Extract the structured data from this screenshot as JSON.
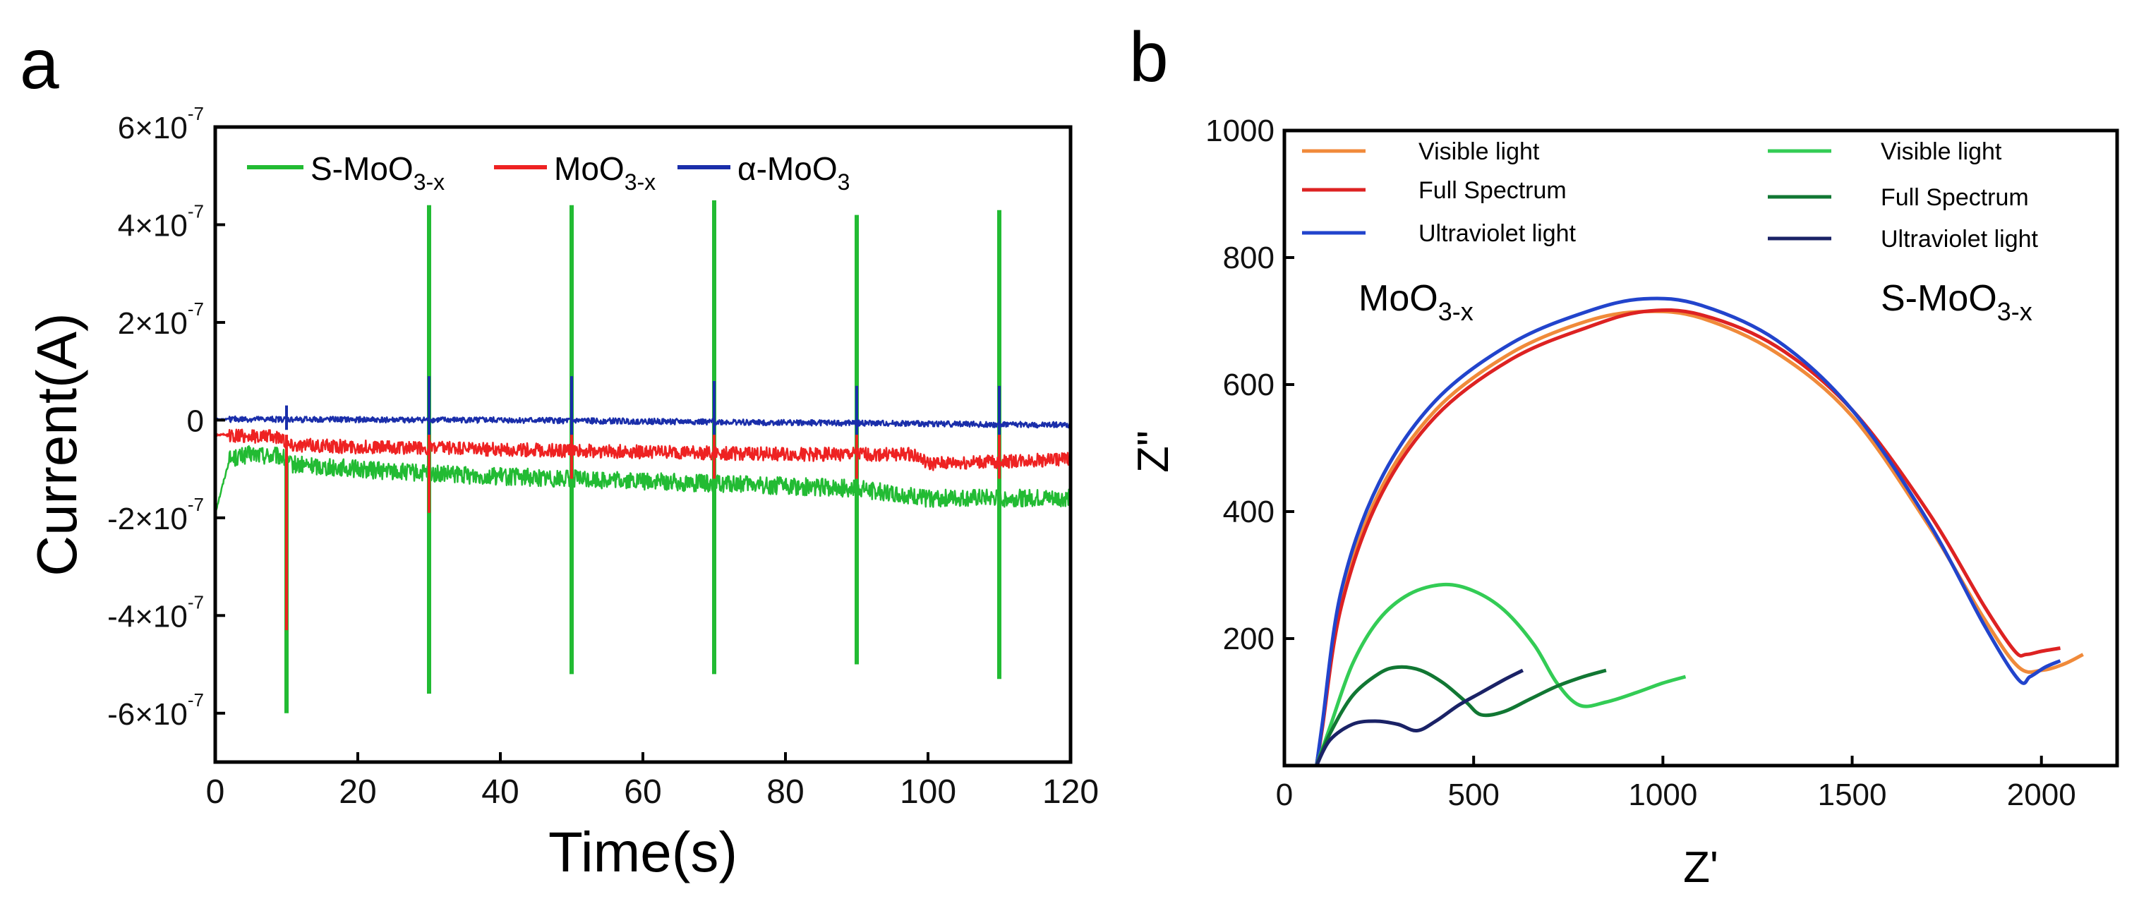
{
  "figure": {
    "panels": [
      "a",
      "b"
    ]
  },
  "chart_data": [
    {
      "id": "a",
      "type": "line",
      "xlabel": "Time(s)",
      "ylabel": "Current(A)",
      "xlim": [
        0,
        120
      ],
      "ylim": [
        -7e-07,
        6e-07
      ],
      "x_ticks": [
        0,
        20,
        40,
        60,
        80,
        100,
        120
      ],
      "y_ticks": [
        {
          "value": 6e-07,
          "base": "6×10",
          "exp": "-7"
        },
        {
          "value": 4e-07,
          "base": "4×10",
          "exp": "-7"
        },
        {
          "value": 2e-07,
          "base": "2×10",
          "exp": "-7"
        },
        {
          "value": 0,
          "base": "0",
          "exp": ""
        },
        {
          "value": -2e-07,
          "base": "-2×10",
          "exp": "-7"
        },
        {
          "value": -4e-07,
          "base": "-4×10",
          "exp": "-7"
        },
        {
          "value": -6e-07,
          "base": "-6×10",
          "exp": "-7"
        }
      ],
      "legend_position": "top",
      "series": [
        {
          "name": "S-MoO3-x",
          "label": "S-MoO",
          "sub": "3-x",
          "color": "#22bb33",
          "baseline_x": [
            0,
            2,
            5,
            9.5,
            10,
            20,
            30,
            50,
            70,
            90,
            100,
            120
          ],
          "baseline_y": [
            -1.9e-07,
            -8e-08,
            -7e-08,
            -7.5e-08,
            -9e-08,
            -1e-07,
            -1.1e-07,
            -1.2e-07,
            -1.3e-07,
            -1.4e-07,
            -1.6e-07,
            -1.6e-07
          ],
          "noise": 1.8e-08,
          "spikes": [
            {
              "x": 10,
              "low": -6e-07,
              "high": -8e-08
            },
            {
              "x": 30,
              "low": -5.6e-07,
              "high": 4.4e-07
            },
            {
              "x": 50,
              "low": -5.2e-07,
              "high": 4.4e-07
            },
            {
              "x": 70,
              "low": -5.2e-07,
              "high": 4.5e-07
            },
            {
              "x": 90,
              "low": -5e-07,
              "high": 4.2e-07
            },
            {
              "x": 110,
              "low": -5.3e-07,
              "high": 4.3e-07
            }
          ]
        },
        {
          "name": "MoO3-x",
          "label": "MoO",
          "sub": "3-x",
          "color": "#ee2222",
          "baseline_x": [
            0,
            9.5,
            10,
            20,
            40,
            60,
            80,
            98,
            100,
            120
          ],
          "baseline_y": [
            -3e-08,
            -3.5e-08,
            -5e-08,
            -5.5e-08,
            -6e-08,
            -6.5e-08,
            -7e-08,
            -7e-08,
            -9e-08,
            -8e-08
          ],
          "noise": 1.4e-08,
          "spikes": [
            {
              "x": 10,
              "low": -4.3e-07,
              "high": -3e-08
            },
            {
              "x": 30,
              "low": -1.9e-07,
              "high": 6e-08
            },
            {
              "x": 50,
              "low": -1.2e-07,
              "high": 4e-08
            },
            {
              "x": 70,
              "low": -1.2e-07,
              "high": 4e-08
            },
            {
              "x": 90,
              "low": -1.2e-07,
              "high": 4e-08
            },
            {
              "x": 110,
              "low": -1.2e-07,
              "high": 4e-08
            }
          ]
        },
        {
          "name": "α-MoO3",
          "label": "α-MoO",
          "sub": "3",
          "color": "#1a2eaa",
          "baseline_x": [
            0,
            40,
            80,
            120
          ],
          "baseline_y": [
            2e-09,
            0.0,
            -5e-09,
            -1e-08
          ],
          "noise": 6e-09,
          "spikes": [
            {
              "x": 10,
              "low": -2e-08,
              "high": 3e-08
            },
            {
              "x": 30,
              "low": -3e-08,
              "high": 9e-08
            },
            {
              "x": 50,
              "low": -3e-08,
              "high": 9e-08
            },
            {
              "x": 70,
              "low": -3e-08,
              "high": 8e-08
            },
            {
              "x": 90,
              "low": -3e-08,
              "high": 7e-08
            },
            {
              "x": 110,
              "low": -3e-08,
              "high": 7e-08
            }
          ]
        }
      ]
    },
    {
      "id": "b",
      "type": "line",
      "xlabel": "Z'",
      "ylabel": "Z\"",
      "xlim": [
        0,
        2200
      ],
      "ylim": [
        0,
        1000
      ],
      "x_ticks": [
        0,
        500,
        1000,
        1500,
        2000
      ],
      "y_ticks": [
        200,
        400,
        600,
        800,
        1000
      ],
      "annotations": [
        {
          "id": "moo3x",
          "text": "MoO",
          "sub": "3-x",
          "x": 180,
          "y": 720
        },
        {
          "id": "smoo3x",
          "text": "S-MoO",
          "sub": "3-x",
          "x": 1590,
          "y": 720
        }
      ],
      "legend_groups": [
        {
          "group": "MoO3-x",
          "entries": [
            {
              "name": "Visible light",
              "color": "#f08a3a"
            },
            {
              "name": "Full Spectrum",
              "color": "#dd2222"
            },
            {
              "name": "Ultraviolet light",
              "color": "#2244cc"
            }
          ]
        },
        {
          "group": "S-MoO3-x",
          "entries": [
            {
              "name": "Visible light",
              "color": "#33cc55"
            },
            {
              "name": "Full Spectrum",
              "color": "#117733"
            },
            {
              "name": "Ultraviolet light",
              "color": "#1a2266"
            }
          ]
        }
      ],
      "series": [
        {
          "name": "MoO3-x Visible light",
          "color": "#f08a3a",
          "x": [
            85,
            100,
            150,
            250,
            400,
            600,
            800,
            950,
            1100,
            1300,
            1500,
            1700,
            1850,
            1940,
            2000,
            2060,
            2110
          ],
          "y": [
            0,
            60,
            260,
            430,
            560,
            650,
            700,
            715,
            705,
            650,
            550,
            380,
            230,
            155,
            150,
            160,
            175
          ]
        },
        {
          "name": "MoO3-x Full Spectrum",
          "color": "#dd2222",
          "x": [
            85,
            100,
            150,
            250,
            400,
            600,
            800,
            950,
            1100,
            1300,
            1500,
            1700,
            1850,
            1930,
            1960,
            2000,
            2050
          ],
          "y": [
            0,
            58,
            250,
            420,
            550,
            640,
            690,
            715,
            710,
            660,
            560,
            400,
            250,
            180,
            175,
            180,
            185
          ]
        },
        {
          "name": "MoO3-x Ultraviolet light",
          "color": "#2244cc",
          "x": [
            85,
            100,
            150,
            250,
            400,
            600,
            800,
            950,
            1100,
            1300,
            1500,
            1700,
            1850,
            1940,
            1970,
            2010,
            2050
          ],
          "y": [
            0,
            65,
            275,
            445,
            575,
            665,
            715,
            735,
            725,
            670,
            560,
            385,
            220,
            135,
            140,
            155,
            165
          ]
        },
        {
          "name": "S-MoO3-x Visible light",
          "color": "#33cc55",
          "x": [
            85,
            120,
            180,
            250,
            330,
            420,
            500,
            580,
            660,
            720,
            780,
            850,
            930,
            1000,
            1060
          ],
          "y": [
            0,
            60,
            160,
            230,
            270,
            285,
            275,
            245,
            190,
            130,
            95,
            100,
            115,
            130,
            140
          ]
        },
        {
          "name": "S-MoO3-x Full Spectrum",
          "color": "#117733",
          "x": [
            85,
            120,
            180,
            250,
            300,
            360,
            420,
            480,
            520,
            580,
            650,
            720,
            790,
            850
          ],
          "y": [
            0,
            50,
            110,
            145,
            155,
            150,
            130,
            100,
            80,
            85,
            105,
            125,
            140,
            150
          ]
        },
        {
          "name": "S-MoO3-x Ultraviolet light",
          "color": "#1a2266",
          "x": [
            85,
            120,
            180,
            240,
            300,
            350,
            400,
            460,
            520,
            580,
            630
          ],
          "y": [
            0,
            40,
            65,
            70,
            65,
            55,
            70,
            95,
            115,
            135,
            150
          ]
        }
      ]
    }
  ]
}
